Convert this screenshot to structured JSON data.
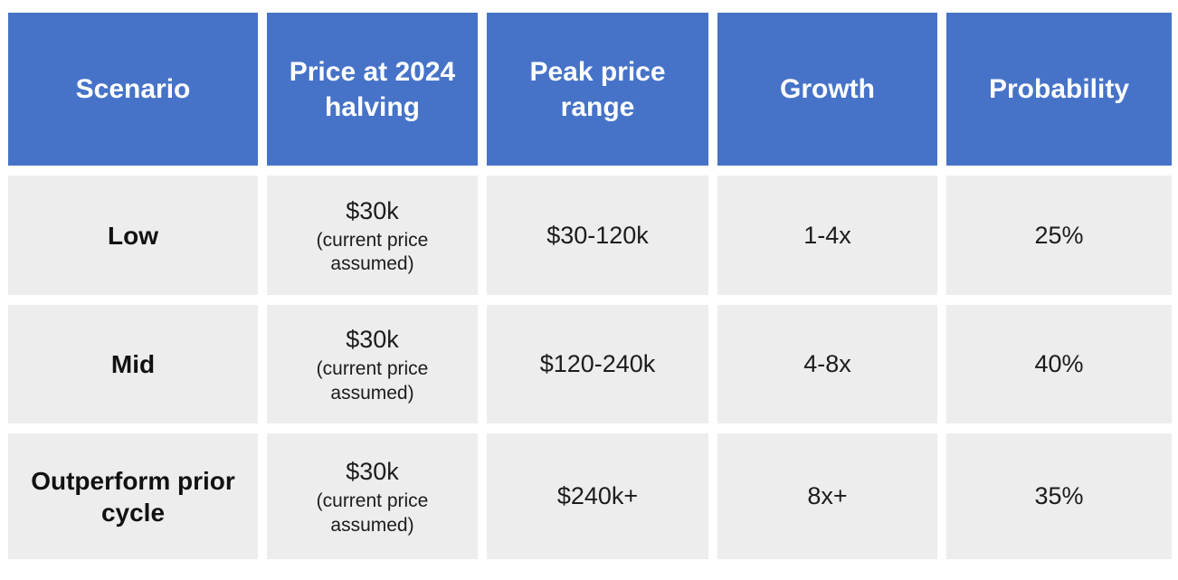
{
  "colors": {
    "header_bg": "#4673c8",
    "header_text": "#ffffff",
    "row_bg": "#ededed",
    "body_text": "#1c1c1c",
    "gutter": "#ffffff"
  },
  "chart_data": {
    "type": "table",
    "columns": [
      "Scenario",
      "Price at 2024 halving",
      "Peak price range",
      "Growth",
      "Probability"
    ],
    "rows": [
      {
        "scenario": "Low",
        "price_at_2024_halving": "$30k",
        "price_note": "(current price assumed)",
        "peak_price_range": "$30-120k",
        "growth": "1-4x",
        "probability": "25%"
      },
      {
        "scenario": "Mid",
        "price_at_2024_halving": "$30k",
        "price_note": "(current price assumed)",
        "peak_price_range": "$120-240k",
        "growth": "4-8x",
        "probability": "40%"
      },
      {
        "scenario": "Outperform prior cycle",
        "price_at_2024_halving": "$30k",
        "price_note": "(current price assumed)",
        "peak_price_range": "$240k+",
        "growth": "8x+",
        "probability": "35%"
      }
    ]
  }
}
